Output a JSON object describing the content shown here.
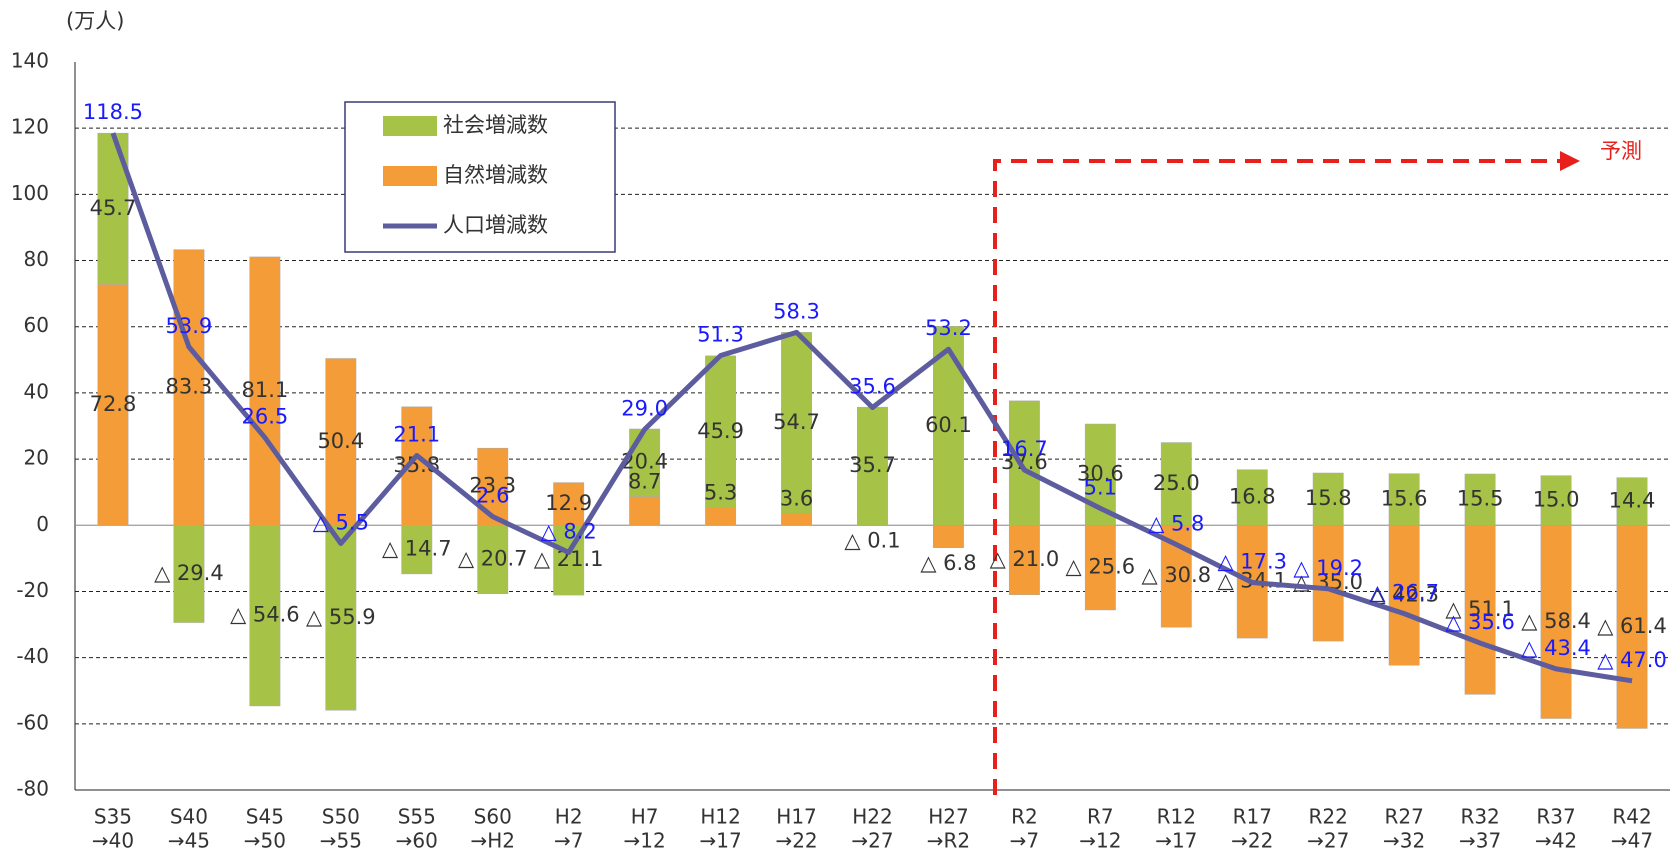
{
  "chart_data": {
    "type": "bar",
    "y_label": "(万人)",
    "annotation": "予測",
    "categories": [
      [
        "S35",
        "→40"
      ],
      [
        "S40",
        "→45"
      ],
      [
        "S45",
        "→50"
      ],
      [
        "S50",
        "→55"
      ],
      [
        "S55",
        "→60"
      ],
      [
        "S60",
        "→H2"
      ],
      [
        "H2",
        "→7"
      ],
      [
        "H7",
        "→12"
      ],
      [
        "H12",
        "→17"
      ],
      [
        "H17",
        "→22"
      ],
      [
        "H22",
        "→27"
      ],
      [
        "H27",
        "→R2"
      ],
      [
        "R2",
        "→7"
      ],
      [
        "R7",
        "→12"
      ],
      [
        "R12",
        "→17"
      ],
      [
        "R17",
        "→22"
      ],
      [
        "R22",
        "→27"
      ],
      [
        "R27",
        "→32"
      ],
      [
        "R32",
        "→37"
      ],
      [
        "R37",
        "→42"
      ],
      [
        "R42",
        "→47"
      ]
    ],
    "series": [
      {
        "name": "自然増減数",
        "color": "#f39c38",
        "values": [
          72.8,
          83.3,
          81.1,
          50.4,
          35.8,
          23.3,
          12.9,
          8.7,
          5.3,
          3.6,
          -0.1,
          -6.8,
          -21.0,
          -25.6,
          -30.8,
          -34.1,
          -35.0,
          -42.3,
          -51.1,
          -58.4,
          -61.4
        ],
        "value_labels": [
          "72.8",
          "83.3",
          "81.1",
          "50.4",
          "35.8",
          "23.3",
          "12.9",
          "8.7",
          "5.3",
          "3.6",
          "△ 0.1",
          "△ 6.8",
          "△ 21.0",
          "△ 25.6",
          "△ 30.8",
          "△ 34.1",
          "△ 35.0",
          "△ 42.3",
          "△ 51.1",
          "△ 58.4",
          "△ 61.4"
        ]
      },
      {
        "name": "社会増減数",
        "color": "#a6c347",
        "values": [
          45.7,
          -29.4,
          -54.6,
          -55.9,
          -14.7,
          -20.7,
          -21.1,
          20.4,
          45.9,
          54.7,
          35.7,
          60.1,
          37.6,
          30.6,
          25.0,
          16.8,
          15.8,
          15.6,
          15.5,
          15.0,
          14.4
        ],
        "value_labels": [
          "45.7",
          "△ 29.4",
          "△ 54.6",
          "△ 55.9",
          "△ 14.7",
          "△ 20.7",
          "△ 21.1",
          "20.4",
          "45.9",
          "54.7",
          "35.7",
          "60.1",
          "37.6",
          "30.6",
          "25.0",
          "16.8",
          "15.8",
          "15.6",
          "15.5",
          "15.0",
          "14.4"
        ]
      },
      {
        "name": "人口増減数",
        "type": "line",
        "color": "#5c5c9e",
        "values": [
          118.5,
          53.9,
          26.5,
          -5.5,
          21.1,
          2.6,
          -8.2,
          29.0,
          51.3,
          58.3,
          35.6,
          53.2,
          16.7,
          5.1,
          -5.8,
          -17.3,
          -19.2,
          -26.7,
          -35.6,
          -43.4,
          -47.0
        ],
        "value_labels": [
          "118.5",
          "53.9",
          "26.5",
          "△ 5.5",
          "21.1",
          "2.6",
          "△ 8.2",
          "29.0",
          "51.3",
          "58.3",
          "35.6",
          "53.2",
          "16.7",
          "5.1",
          "△ 5.8",
          "△ 17.3",
          "△ 19.2",
          "△ 26.7",
          "△ 35.6",
          "△ 43.4",
          "△ 47.0"
        ]
      }
    ],
    "ylim": [
      -80,
      140
    ],
    "yticks": [
      -80,
      -60,
      -40,
      -20,
      0,
      20,
      40,
      60,
      80,
      100,
      120,
      140
    ],
    "grid": true
  }
}
